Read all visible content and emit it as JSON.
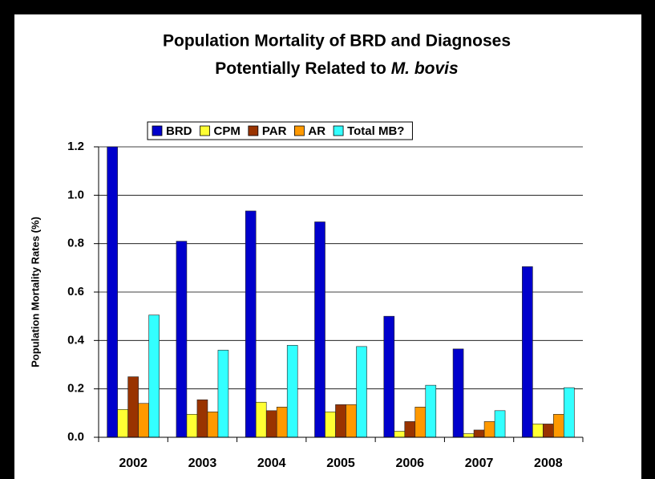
{
  "chart_data": {
    "type": "bar",
    "title": [
      "Population Mortality of BRD and Diagnoses",
      "Potentially Related to"
    ],
    "title_italic": "M. bovis",
    "y_label": "Population Mortality Rates (%)",
    "categories": [
      "2002",
      "2003",
      "2004",
      "2005",
      "2006",
      "2007",
      "2008"
    ],
    "series": [
      {
        "name": "BRD",
        "color": "#0000cc",
        "values": [
          1.2,
          0.81,
          0.935,
          0.89,
          0.5,
          0.365,
          0.705
        ]
      },
      {
        "name": "CPM",
        "color": "#ffff33",
        "values": [
          0.115,
          0.095,
          0.145,
          0.105,
          0.025,
          0.015,
          0.055
        ]
      },
      {
        "name": "PAR",
        "color": "#993300",
        "values": [
          0.25,
          0.155,
          0.11,
          0.135,
          0.065,
          0.03,
          0.055
        ]
      },
      {
        "name": "AR",
        "color": "#ff9900",
        "values": [
          0.14,
          0.105,
          0.125,
          0.135,
          0.125,
          0.065,
          0.095
        ]
      },
      {
        "name": "Total MB?",
        "color": "#33ffff",
        "values": [
          0.505,
          0.36,
          0.38,
          0.375,
          0.215,
          0.11,
          0.205
        ]
      }
    ],
    "ylim": [
      0,
      1.2
    ],
    "yticks": [
      {
        "value": 0,
        "label": "0.0"
      },
      {
        "value": 0.2,
        "label": "0.2"
      },
      {
        "value": 0.4,
        "label": "0.4"
      },
      {
        "value": 0.6,
        "label": "0.6"
      },
      {
        "value": 0.8,
        "label": "0.8"
      },
      {
        "value": 1,
        "label": "1.0"
      },
      {
        "value": 1.2,
        "label": "1.2"
      }
    ],
    "grid": true,
    "legend": "top"
  }
}
